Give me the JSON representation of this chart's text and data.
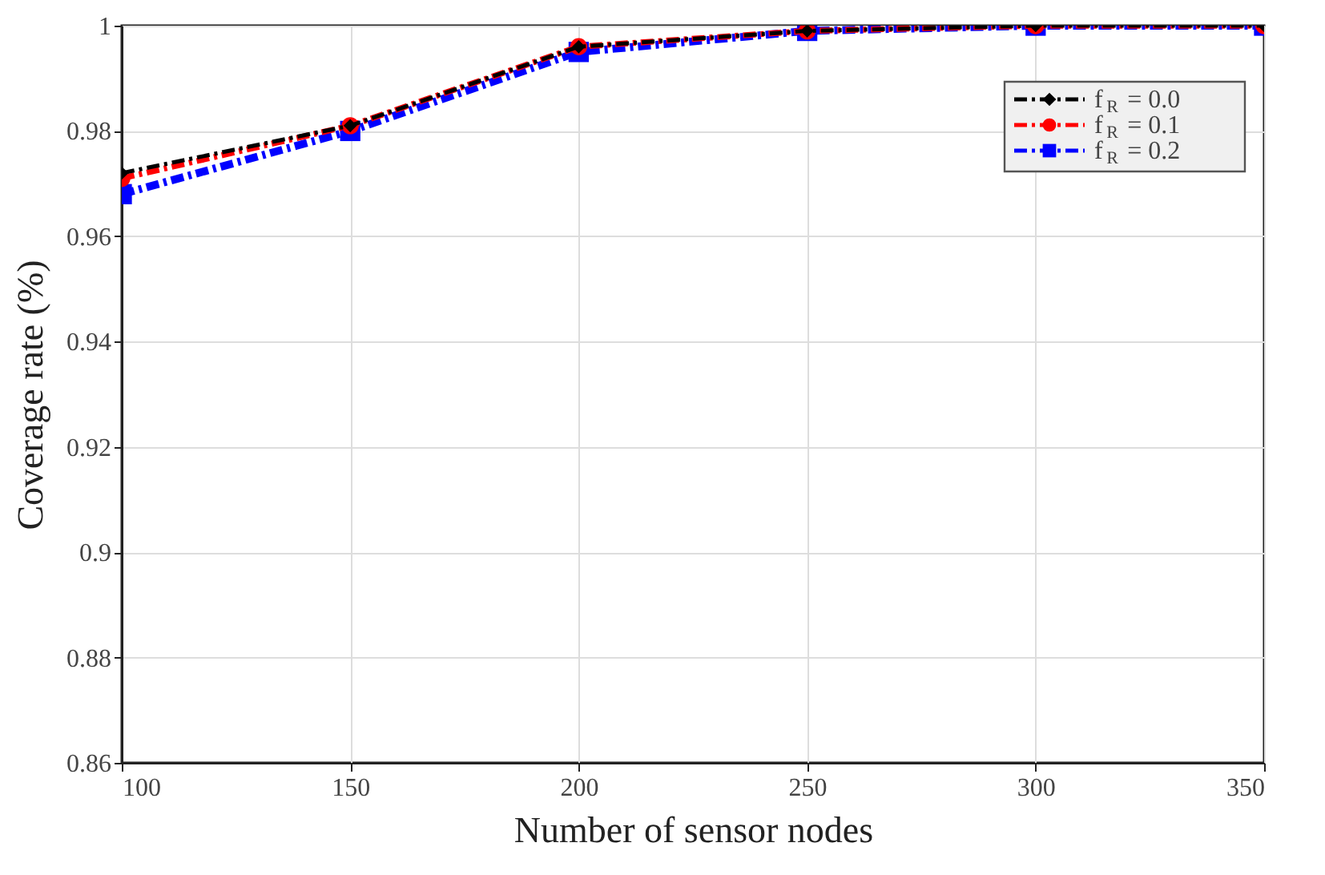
{
  "chart_data": {
    "type": "line",
    "xlabel": "Number of sensor nodes",
    "ylabel": "Coverage rate (%)",
    "x": [
      100,
      150,
      200,
      250,
      300,
      350
    ],
    "series": [
      {
        "name": "f$_{R}$ = 0.0",
        "color": "#000000",
        "marker": "diamond",
        "values": [
          0.972,
          0.981,
          0.996,
          0.999,
          1,
          1
        ]
      },
      {
        "name": "f$_{R}$ = 0.1",
        "color": "#ff0000",
        "marker": "circle",
        "values": [
          0.971,
          0.981,
          0.996,
          0.999,
          1,
          1
        ]
      },
      {
        "name": "f$_{R}$ = 0.2",
        "color": "#0000ff",
        "marker": "square",
        "values": [
          0.968,
          0.98,
          0.995,
          0.999,
          1,
          1
        ]
      }
    ],
    "xlim": [
      100,
      350
    ],
    "xticks": [
      100,
      150,
      200,
      250,
      300,
      350
    ],
    "ylim": [
      0.86,
      1
    ],
    "yticks": [
      0.86,
      0.88,
      0.9,
      0.92,
      0.94,
      0.96,
      0.98,
      1
    ],
    "grid": true,
    "legend": "top right",
    "line_style": "dashed"
  }
}
